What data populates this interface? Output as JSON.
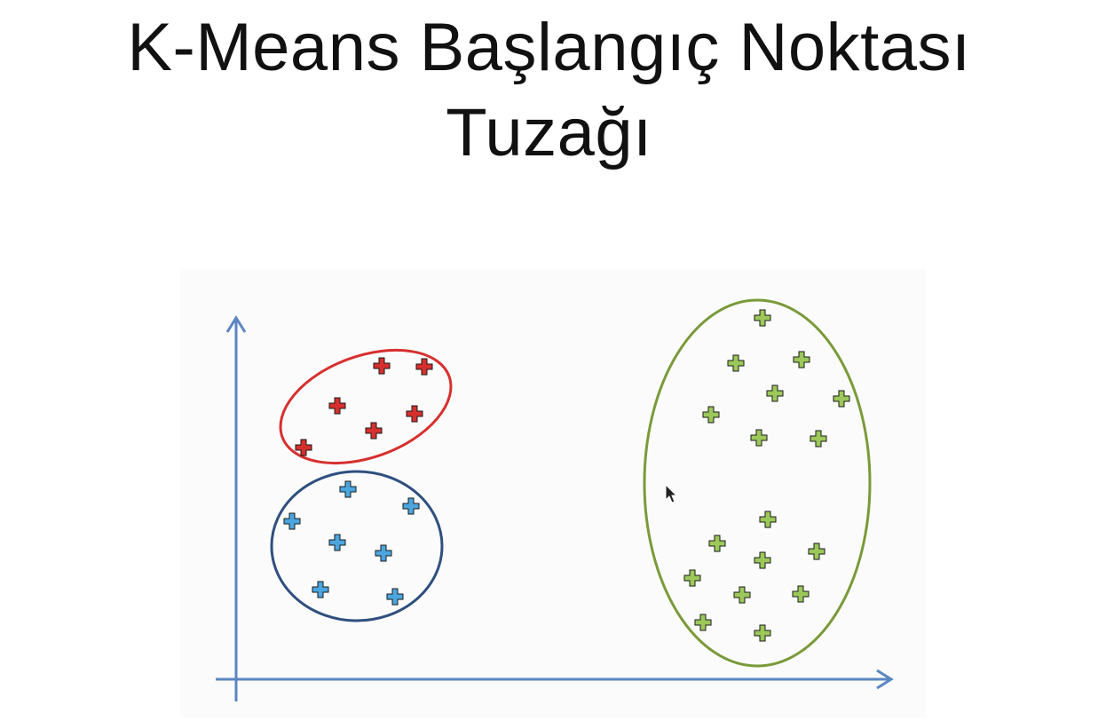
{
  "title": {
    "line1": "K-Means Başlangıç Noktası",
    "line2": "Tuzağı"
  },
  "colors": {
    "axis": "#5b86c2",
    "red_cluster": "#d6302e",
    "blue_cluster_outline": "#2f4f7f",
    "blue_points": "#4ba6df",
    "green_cluster": "#7a9a3a",
    "green_points": "#9cc85a"
  },
  "icons": {
    "data_point": "plus-icon",
    "cursor": "mouse-pointer-icon"
  },
  "clusters": [
    {
      "name": "red",
      "points": [
        [
          430,
          412
        ],
        [
          478,
          413
        ],
        [
          380,
          457
        ],
        [
          467,
          466
        ],
        [
          421,
          485
        ],
        [
          342,
          504
        ]
      ]
    },
    {
      "name": "blue",
      "points": [
        [
          392,
          551
        ],
        [
          463,
          570
        ],
        [
          329,
          587
        ],
        [
          380,
          611
        ],
        [
          432,
          623
        ],
        [
          361,
          664
        ],
        [
          445,
          672
        ]
      ]
    },
    {
      "name": "green",
      "points": [
        [
          859,
          358
        ],
        [
          829,
          409
        ],
        [
          903,
          405
        ],
        [
          873,
          443
        ],
        [
          948,
          449
        ],
        [
          801,
          467
        ],
        [
          855,
          493
        ],
        [
          922,
          494
        ],
        [
          865,
          585
        ],
        [
          808,
          612
        ],
        [
          859,
          631
        ],
        [
          920,
          621
        ],
        [
          780,
          651
        ],
        [
          836,
          670
        ],
        [
          902,
          669
        ],
        [
          792,
          701
        ],
        [
          859,
          713
        ]
      ]
    }
  ]
}
